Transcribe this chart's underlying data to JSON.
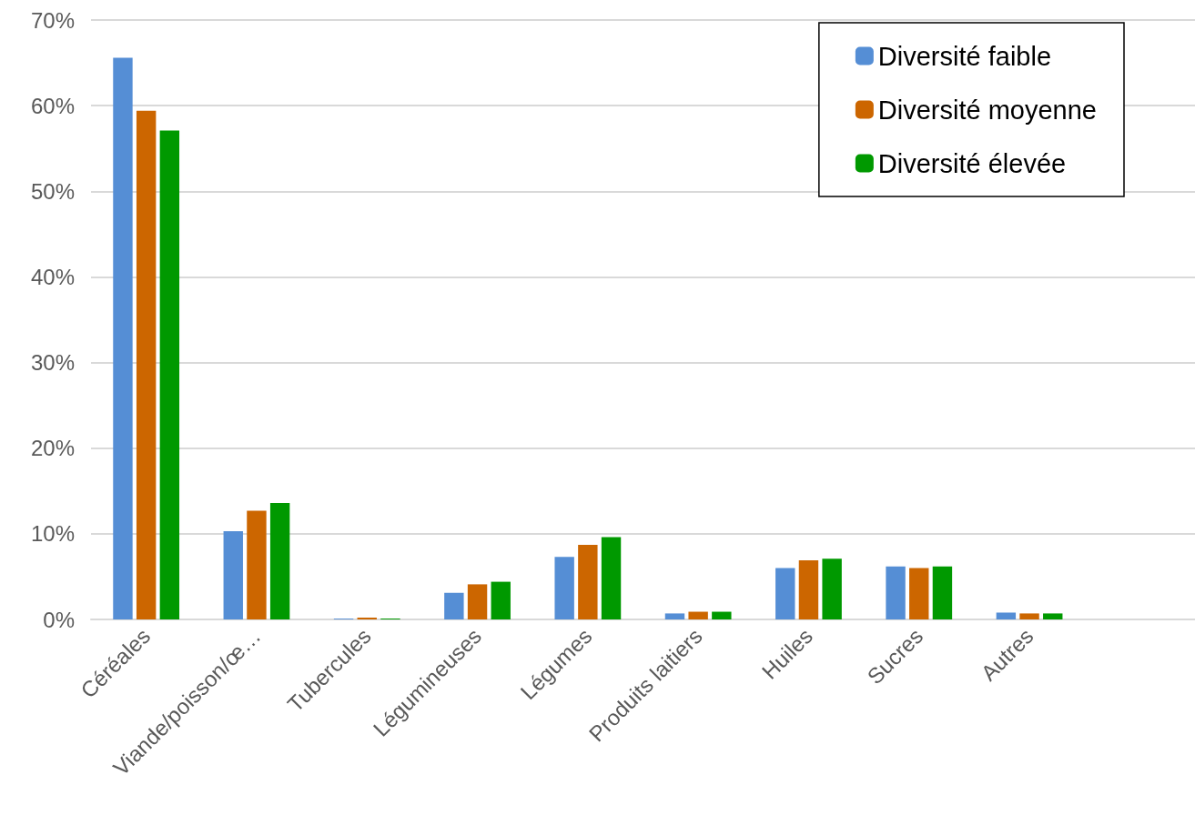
{
  "chart_data": {
    "type": "bar",
    "categories": [
      "Céréales",
      "Viande/poisson/œ…",
      "Tubercules",
      "Légumineuses",
      "Légumes",
      "Produits laitiers",
      "Huiles",
      "Sucres",
      "Autres",
      null
    ],
    "series": [
      {
        "name": "Diversité faible",
        "color": "#558ed5",
        "values": [
          65.6,
          10.3,
          0.1,
          3.1,
          7.3,
          0.7,
          6.0,
          6.2,
          0.8,
          null
        ]
      },
      {
        "name": "Diversité moyenne",
        "color": "#cc6600",
        "values": [
          59.4,
          12.7,
          0.2,
          4.1,
          8.7,
          0.9,
          6.9,
          6.0,
          0.7,
          null
        ]
      },
      {
        "name": "Diversité élevée",
        "color": "#009900",
        "values": [
          57.1,
          13.6,
          0.1,
          4.4,
          9.6,
          0.9,
          7.1,
          6.2,
          0.7,
          null
        ]
      }
    ],
    "ylim": [
      0,
      70
    ],
    "yticks": [
      {
        "value": 0,
        "label": "0%"
      },
      {
        "value": 10,
        "label": "10%"
      },
      {
        "value": 20,
        "label": "20%"
      },
      {
        "value": 30,
        "label": "30%"
      },
      {
        "value": 40,
        "label": "40%"
      },
      {
        "value": 50,
        "label": "50%"
      },
      {
        "value": 60,
        "label": "60%"
      },
      {
        "value": 70,
        "label": "70%"
      }
    ],
    "grid": "y",
    "legend": "top right"
  }
}
